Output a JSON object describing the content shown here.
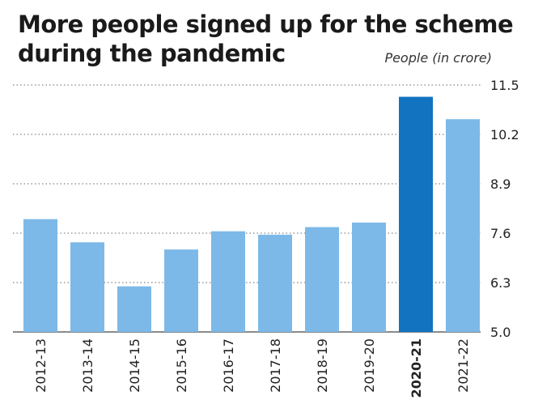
{
  "chart_data": {
    "type": "bar",
    "title_lines": [
      "More people signed up for the scheme",
      "during the pandemic"
    ],
    "unit_label": "People (in crore)",
    "xlabel": "",
    "ylabel": "",
    "categories": [
      "2012-13",
      "2013-14",
      "2014-15",
      "2015-16",
      "2016-17",
      "2017-18",
      "2018-19",
      "2019-20",
      "2020-21",
      "2021-22"
    ],
    "values": [
      7.97,
      7.36,
      6.2,
      7.17,
      7.65,
      7.56,
      7.76,
      7.88,
      11.19,
      10.6
    ],
    "highlight_category": "2020-21",
    "ylim": [
      5.0,
      11.5
    ],
    "yticks": [
      "5.0",
      "6.3",
      "7.6",
      "8.9",
      "10.2",
      "11.5"
    ],
    "grid": "horizontal-dotted",
    "y_axis_position": "right",
    "colors": {
      "bar": "#7cb9e8",
      "highlight": "#1273c0",
      "grid": "#666666",
      "text": "#222222"
    }
  }
}
